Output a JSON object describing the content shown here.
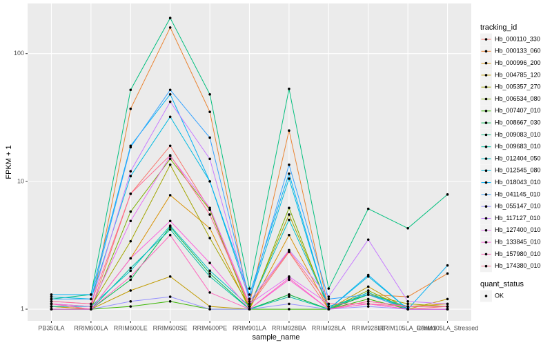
{
  "chart_data": {
    "type": "line",
    "y_label": "FPKM + 1",
    "x_label": "sample_name",
    "log_y": true,
    "grid": true,
    "legend_title": "tracking_id",
    "legend_position": "right",
    "shape_legend": {
      "title": "quant_status",
      "labels": [
        "OK"
      ],
      "color": "#000000"
    },
    "categories": [
      "PB350LA",
      "RRIM600LA",
      "RRIM600LE",
      "RRIM600SE",
      "RRIM600PE",
      "RRIM901LA",
      "RRIM928BA",
      "RRIM928LA",
      "RRIM928LE",
      "RRIM105LA_Control",
      "RRIM105LA_Stressed"
    ],
    "ylim": [
      0.81,
      247
    ],
    "yticks": [
      1,
      10,
      100
    ],
    "series": [
      {
        "name": "Hb_000110_330",
        "color": "#F8766D",
        "values": [
          1.1,
          1.0,
          8,
          19,
          6,
          1.05,
          2.8,
          1,
          1.1,
          1,
          1.05
        ]
      },
      {
        "name": "Hb_000133_060",
        "color": "#EA8331",
        "values": [
          1.05,
          1.0,
          37,
          160,
          35,
          1.1,
          25,
          1,
          1.3,
          1.25,
          1.9
        ]
      },
      {
        "name": "Hb_000996_200",
        "color": "#D89000",
        "values": [
          1.0,
          1.0,
          2.5,
          7.8,
          4.3,
          1.0,
          3.8,
          1,
          1.15,
          1.05,
          1.1
        ]
      },
      {
        "name": "Hb_004785_120",
        "color": "#C09B00",
        "values": [
          1.05,
          1.0,
          1.4,
          1.8,
          1.05,
          1.0,
          1.3,
          1,
          1.5,
          1.0,
          1.2
        ]
      },
      {
        "name": "Hb_005357_270",
        "color": "#A3A500",
        "values": [
          1.1,
          1.05,
          3.4,
          13.5,
          3.6,
          1.05,
          5.5,
          1.05,
          1.3,
          1.1,
          1.05
        ]
      },
      {
        "name": "Hb_006534_080",
        "color": "#7CAE00",
        "values": [
          1.0,
          1.0,
          5.8,
          15,
          6,
          1.0,
          6.2,
          1.0,
          1.4,
          1.0,
          1.0
        ]
      },
      {
        "name": "Hb_007407_010",
        "color": "#39B600",
        "values": [
          1.0,
          1.0,
          1.05,
          1.15,
          1.0,
          1.0,
          1.0,
          1.0,
          1.2,
          1.0,
          1.0
        ]
      },
      {
        "name": "Hb_008667_030",
        "color": "#00BB4E",
        "values": [
          1.0,
          1.0,
          1.7,
          4.4,
          1.9,
          1.0,
          1.3,
          1.0,
          1.3,
          1.0,
          1.0
        ]
      },
      {
        "name": "Hb_009083_010",
        "color": "#00BF7D",
        "values": [
          1.2,
          1.3,
          52,
          190,
          48,
          1.45,
          53,
          1.45,
          6.1,
          4.3,
          7.9
        ]
      },
      {
        "name": "Hb_009683_010",
        "color": "#00C1A3",
        "values": [
          1.0,
          1.0,
          2.1,
          4.2,
          1.8,
          1.0,
          1.25,
          1.0,
          1.35,
          1.0,
          1.0
        ]
      },
      {
        "name": "Hb_012404_050",
        "color": "#00BFC4",
        "values": [
          1.05,
          1.05,
          2.0,
          4.5,
          2.0,
          1.05,
          5.0,
          1.05,
          1.3,
          1.05,
          1.05
        ]
      },
      {
        "name": "Hb_012545_080",
        "color": "#00BAE0",
        "values": [
          1.25,
          1.2,
          11,
          32,
          10,
          1.2,
          10.5,
          1.0,
          1.8,
          1.0,
          1.0
        ]
      },
      {
        "name": "Hb_018043_010",
        "color": "#00B0F6",
        "values": [
          1.3,
          1.3,
          19,
          48,
          10,
          1.3,
          11.5,
          1.0,
          1.85,
          1.0,
          2.2
        ]
      },
      {
        "name": "Hb_041145_010",
        "color": "#35A2FF",
        "values": [
          1.2,
          1.2,
          18.5,
          52,
          22,
          1.2,
          13.5,
          1.2,
          1.3,
          1.0,
          1.0
        ]
      },
      {
        "name": "Hb_055147_010",
        "color": "#9590FF",
        "values": [
          1.0,
          1.0,
          1.15,
          1.25,
          1.0,
          1.0,
          1.1,
          1.0,
          1.05,
          1.0,
          1.0
        ]
      },
      {
        "name": "Hb_117127_010",
        "color": "#C77CFF",
        "values": [
          1.15,
          1.1,
          12,
          42,
          15,
          1.15,
          2.9,
          1.25,
          3.5,
          1.15,
          1.1
        ]
      },
      {
        "name": "Hb_127400_010",
        "color": "#E76BF3",
        "values": [
          1.1,
          1.05,
          4.9,
          15.8,
          6.2,
          1.1,
          1.8,
          1.1,
          1.1,
          1.0,
          1.0
        ]
      },
      {
        "name": "Hb_133845_010",
        "color": "#FA62DB",
        "values": [
          1.0,
          1.0,
          2.5,
          4.9,
          2.3,
          1.0,
          1.7,
          1.0,
          1.1,
          1.0,
          1.0
        ]
      },
      {
        "name": "Hb_157980_010",
        "color": "#FF62BC",
        "values": [
          1.1,
          1.0,
          1.8,
          3.8,
          1.35,
          1.0,
          1.75,
          1.0,
          1.15,
          1.05,
          1.05
        ]
      },
      {
        "name": "Hb_174380_010",
        "color": "#FF6C91",
        "values": [
          1.15,
          1.1,
          8.0,
          16,
          5.5,
          1.1,
          2.85,
          1.1,
          1.1,
          1.05,
          1.05
        ]
      }
    ]
  }
}
